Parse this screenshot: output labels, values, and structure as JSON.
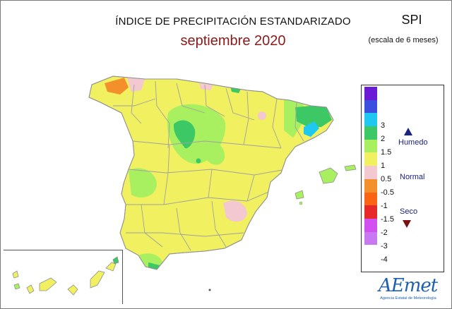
{
  "header": {
    "title": "ÍNDICE DE PRECIPITACIÓN ESTANDARIZADO",
    "subtitle": "septiembre 2020",
    "index_name": "SPI",
    "index_scale": "(escala de 6 meses)"
  },
  "legend": {
    "ticks": [
      "3",
      "2",
      "1.5",
      "1",
      "0.5",
      "-0.5",
      "-1",
      "-1.5",
      "-2",
      "-3",
      "-4"
    ],
    "colors": [
      "#6a1bd6",
      "#3a4fe0",
      "#1ec8f0",
      "#3cc864",
      "#a8f060",
      "#f0f060",
      "#f4c8d0",
      "#f4902c",
      "#fa6414",
      "#e62828",
      "#d250f0",
      "#c878f0"
    ],
    "class_humid": "Humedo",
    "class_normal": "Normal",
    "class_dry": "Seco"
  },
  "map_colors": {
    "normal": "#f0f060",
    "light_humid": "#a8f060",
    "humid": "#3cc864",
    "very_humid": "#1ec8f0",
    "light_dry": "#f4c8d0",
    "dry": "#f4902c",
    "border": "#a0a0a0"
  },
  "logo": {
    "word": "AEmet",
    "tagline": "Agencia Estatal de Meteorología"
  }
}
